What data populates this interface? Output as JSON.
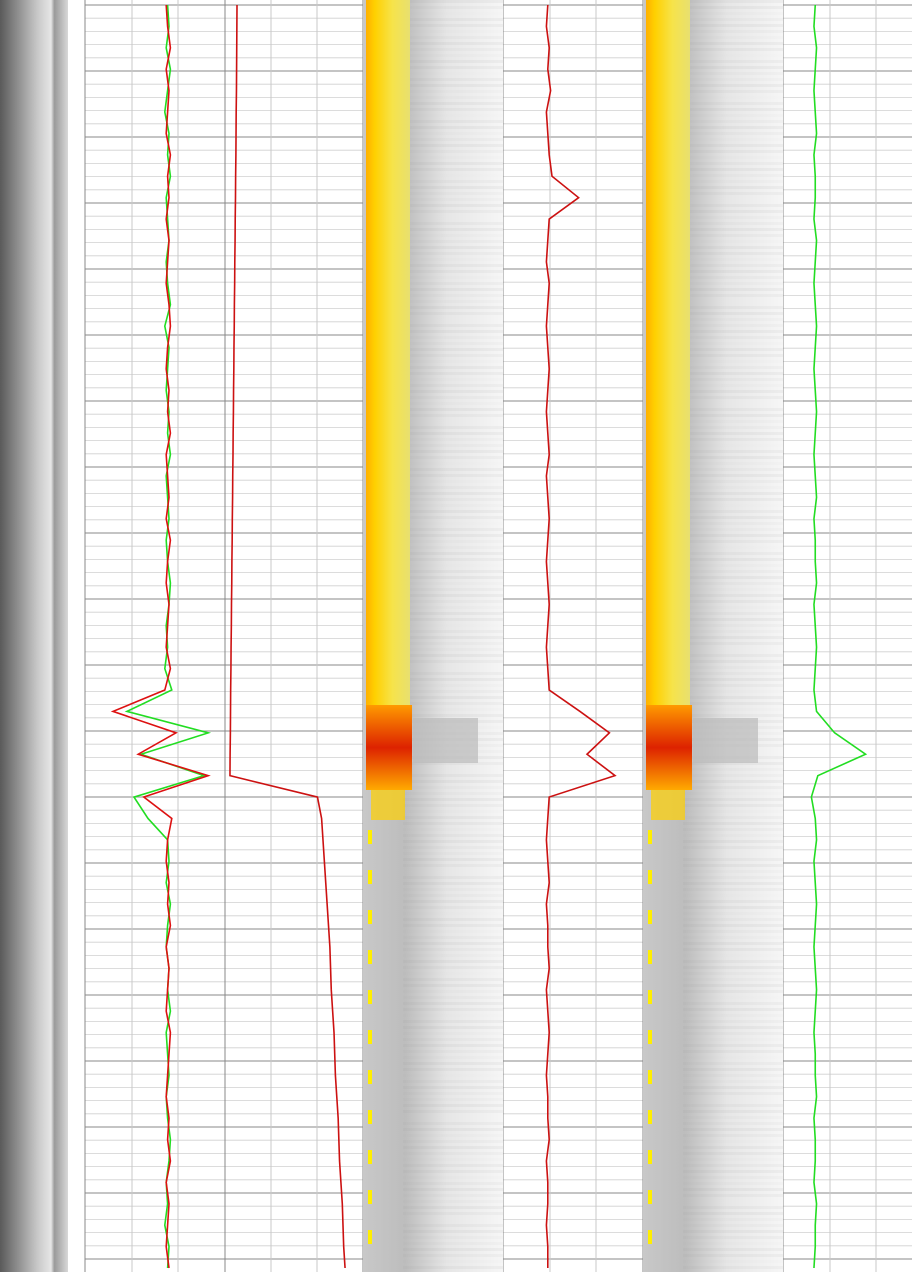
{
  "tracks": [
    {
      "curves": [
        {
          "color": "#22dd22",
          "values": [
            59,
            60,
            58,
            61,
            59,
            57,
            60,
            59,
            61,
            58,
            59,
            60,
            58,
            59,
            61,
            57,
            60,
            59,
            58,
            60,
            59,
            61,
            58,
            59,
            60,
            58,
            59,
            61,
            60,
            58,
            59,
            57,
            62,
            30,
            88,
            40,
            85,
            35,
            45,
            59,
            60,
            58,
            61,
            59,
            58,
            60,
            59,
            61,
            58,
            59,
            60,
            58,
            59,
            61,
            60,
            58,
            59,
            57,
            60,
            59
          ]
        },
        {
          "color": "#dd1111",
          "values": [
            58,
            59,
            61,
            58,
            60,
            59,
            58,
            61,
            59,
            60,
            58,
            60,
            59,
            58,
            60,
            61,
            59,
            58,
            60,
            59,
            61,
            58,
            59,
            60,
            58,
            61,
            59,
            58,
            60,
            59,
            58,
            61,
            57,
            20,
            65,
            38,
            88,
            42,
            62,
            59,
            58,
            60,
            59,
            61,
            58,
            60,
            59,
            58,
            61,
            60,
            59,
            58,
            60,
            59,
            61,
            58,
            60,
            59,
            58,
            60
          ]
        }
      ]
    },
    {
      "curves": [
        {
          "color": "#cc1111",
          "values": [
            8.7,
            8.6,
            8.5,
            8.4,
            8.3,
            8.1,
            8,
            7.9,
            7.7,
            7.6,
            7.4,
            7.3,
            7.1,
            7,
            6.8,
            6.7,
            6.5,
            6.4,
            6.2,
            6.1,
            5.9,
            5.8,
            5.6,
            5.5,
            5.3,
            5.2,
            5,
            4.9,
            4.7,
            4.6,
            4.4,
            4.3,
            4.1,
            4,
            3.9,
            3.7,
            3.6,
            67,
            70,
            71,
            72,
            73,
            74,
            75,
            76,
            76.5,
            77,
            78,
            79,
            79.5,
            80,
            81,
            82,
            82.5,
            83,
            84,
            85,
            85.5,
            86,
            87
          ]
        }
      ]
    },
    {
      "curves": [
        {
          "color": "#cc1111",
          "values": [
            32,
            31,
            33,
            32,
            34,
            31,
            32,
            33,
            35,
            54,
            33,
            32,
            31,
            33,
            32,
            31,
            32,
            33,
            32,
            31,
            32,
            33,
            31,
            32,
            33,
            32,
            31,
            32,
            33,
            32,
            31,
            32,
            33,
            55,
            76,
            60,
            80,
            33,
            32,
            31,
            32,
            33,
            31,
            32,
            32,
            33,
            31,
            32,
            33,
            32,
            31,
            32,
            32,
            33,
            31,
            32,
            32,
            31,
            32,
            32
          ]
        }
      ]
    },
    {
      "curves": [
        {
          "color": "#22dd22",
          "values": [
            25,
            24,
            26,
            25,
            24,
            25,
            26,
            24,
            25,
            25,
            24,
            26,
            25,
            24,
            25,
            26,
            25,
            24,
            25,
            26,
            25,
            24,
            25,
            26,
            24,
            25,
            25,
            26,
            24,
            25,
            26,
            25,
            24,
            26,
            40,
            64,
            27,
            22,
            25,
            26,
            24,
            25,
            26,
            25,
            24,
            25,
            26,
            25,
            24,
            25,
            25,
            26,
            24,
            25,
            25,
            24,
            26,
            25,
            25,
            24
          ]
        }
      ]
    }
  ]
}
